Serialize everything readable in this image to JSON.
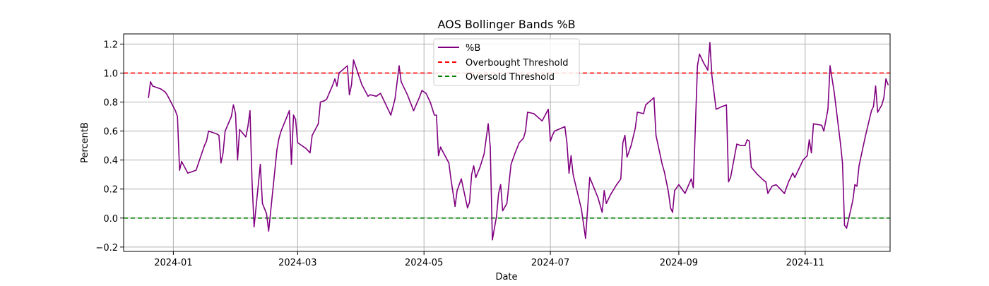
{
  "chart_data": {
    "type": "line",
    "title": "AOS Bollinger Bands %B",
    "xlabel": "Date",
    "ylabel": "PercentB",
    "x_tick_labels": [
      "2024-01",
      "2024-03",
      "2024-05",
      "2024-07",
      "2024-09",
      "2024-11"
    ],
    "x_tick_dates": [
      "2024-01-01",
      "2024-03-01",
      "2024-05-01",
      "2024-07-01",
      "2024-09-01",
      "2024-11-01"
    ],
    "xlim": [
      "2023-12-08",
      "2024-12-12"
    ],
    "y_ticks": [
      -0.2,
      0.0,
      0.2,
      0.4,
      0.6,
      0.8,
      1.0,
      1.2
    ],
    "y_tick_labels": [
      "−0.2",
      "0.0",
      "0.2",
      "0.4",
      "0.6",
      "0.8",
      "1.0",
      "1.2"
    ],
    "ylim": [
      -0.23,
      1.27
    ],
    "grid": true,
    "legend_position": "top-center",
    "colors": {
      "series": "#800080",
      "overbought": "#ff0000",
      "oversold": "#008000",
      "grid": "#b0b0b0"
    },
    "thresholds": [
      {
        "name": "Overbought Threshold",
        "value": 1.0,
        "color": "#ff0000",
        "style": "dashed"
      },
      {
        "name": "Oversold Threshold",
        "value": 0.0,
        "color": "#008000",
        "style": "dashed"
      }
    ],
    "series": [
      {
        "name": "%B",
        "color": "#800080",
        "points": [
          [
            "2023-12-20",
            0.83
          ],
          [
            "2023-12-21",
            0.94
          ],
          [
            "2023-12-22",
            0.91
          ],
          [
            "2023-12-26",
            0.89
          ],
          [
            "2023-12-27",
            0.88
          ],
          [
            "2023-12-28",
            0.87
          ],
          [
            "2023-12-29",
            0.85
          ],
          [
            "2024-01-02",
            0.74
          ],
          [
            "2024-01-03",
            0.7
          ],
          [
            "2024-01-04",
            0.33
          ],
          [
            "2024-01-05",
            0.39
          ],
          [
            "2024-01-08",
            0.31
          ],
          [
            "2024-01-10",
            0.32
          ],
          [
            "2024-01-12",
            0.33
          ],
          [
            "2024-01-16",
            0.5
          ],
          [
            "2024-01-17",
            0.53
          ],
          [
            "2024-01-18",
            0.6
          ],
          [
            "2024-01-22",
            0.58
          ],
          [
            "2024-01-23",
            0.57
          ],
          [
            "2024-01-24",
            0.38
          ],
          [
            "2024-01-25",
            0.45
          ],
          [
            "2024-01-26",
            0.6
          ],
          [
            "2024-01-29",
            0.7
          ],
          [
            "2024-01-30",
            0.78
          ],
          [
            "2024-01-31",
            0.72
          ],
          [
            "2024-02-01",
            0.4
          ],
          [
            "2024-02-02",
            0.61
          ],
          [
            "2024-02-05",
            0.56
          ],
          [
            "2024-02-06",
            0.63
          ],
          [
            "2024-02-07",
            0.74
          ],
          [
            "2024-02-08",
            0.25
          ],
          [
            "2024-02-09",
            -0.06
          ],
          [
            "2024-02-12",
            0.37
          ],
          [
            "2024-02-13",
            0.1
          ],
          [
            "2024-02-15",
            0.03
          ],
          [
            "2024-02-16",
            -0.09
          ],
          [
            "2024-02-20",
            0.47
          ],
          [
            "2024-02-21",
            0.55
          ],
          [
            "2024-02-22",
            0.6
          ],
          [
            "2024-02-26",
            0.74
          ],
          [
            "2024-02-27",
            0.37
          ],
          [
            "2024-02-28",
            0.71
          ],
          [
            "2024-02-29",
            0.68
          ],
          [
            "2024-03-01",
            0.52
          ],
          [
            "2024-03-05",
            0.48
          ],
          [
            "2024-03-07",
            0.45
          ],
          [
            "2024-03-08",
            0.57
          ],
          [
            "2024-03-11",
            0.65
          ],
          [
            "2024-03-12",
            0.8
          ],
          [
            "2024-03-14",
            0.81
          ],
          [
            "2024-03-15",
            0.82
          ],
          [
            "2024-03-18",
            0.92
          ],
          [
            "2024-03-19",
            0.96
          ],
          [
            "2024-03-20",
            0.91
          ],
          [
            "2024-03-21",
            1.0
          ],
          [
            "2024-03-25",
            1.05
          ],
          [
            "2024-03-26",
            0.85
          ],
          [
            "2024-03-27",
            0.92
          ],
          [
            "2024-03-28",
            1.09
          ],
          [
            "2024-04-01",
            0.92
          ],
          [
            "2024-04-04",
            0.84
          ],
          [
            "2024-04-05",
            0.85
          ],
          [
            "2024-04-08",
            0.84
          ],
          [
            "2024-04-09",
            0.85
          ],
          [
            "2024-04-10",
            0.86
          ],
          [
            "2024-04-15",
            0.71
          ],
          [
            "2024-04-17",
            0.82
          ],
          [
            "2024-04-19",
            1.05
          ],
          [
            "2024-04-20",
            0.94
          ],
          [
            "2024-04-23",
            0.85
          ],
          [
            "2024-04-26",
            0.74
          ],
          [
            "2024-04-29",
            0.84
          ],
          [
            "2024-04-30",
            0.88
          ],
          [
            "2024-05-02",
            0.86
          ],
          [
            "2024-05-04",
            0.8
          ],
          [
            "2024-05-06",
            0.71
          ],
          [
            "2024-05-07",
            0.71
          ],
          [
            "2024-05-08",
            0.43
          ],
          [
            "2024-05-09",
            0.49
          ],
          [
            "2024-05-10",
            0.46
          ],
          [
            "2024-05-13",
            0.38
          ],
          [
            "2024-05-14",
            0.27
          ],
          [
            "2024-05-16",
            0.08
          ],
          [
            "2024-05-17",
            0.19
          ],
          [
            "2024-05-19",
            0.27
          ],
          [
            "2024-05-22",
            0.07
          ],
          [
            "2024-05-23",
            0.11
          ],
          [
            "2024-05-24",
            0.3
          ],
          [
            "2024-05-25",
            0.36
          ],
          [
            "2024-05-26",
            0.28
          ],
          [
            "2024-05-28",
            0.35
          ],
          [
            "2024-05-30",
            0.44
          ],
          [
            "2024-06-01",
            0.65
          ],
          [
            "2024-06-02",
            0.49
          ],
          [
            "2024-06-03",
            -0.15
          ],
          [
            "2024-06-05",
            0.01
          ],
          [
            "2024-06-06",
            0.17
          ],
          [
            "2024-06-07",
            0.23
          ],
          [
            "2024-06-08",
            0.05
          ],
          [
            "2024-06-10",
            0.1
          ],
          [
            "2024-06-12",
            0.37
          ],
          [
            "2024-06-14",
            0.45
          ],
          [
            "2024-06-16",
            0.52
          ],
          [
            "2024-06-18",
            0.55
          ],
          [
            "2024-06-19",
            0.6
          ],
          [
            "2024-06-20",
            0.73
          ],
          [
            "2024-06-23",
            0.72
          ],
          [
            "2024-06-27",
            0.67
          ],
          [
            "2024-06-30",
            0.75
          ],
          [
            "2024-07-01",
            0.53
          ],
          [
            "2024-07-02",
            0.57
          ],
          [
            "2024-07-03",
            0.6
          ],
          [
            "2024-07-08",
            0.63
          ],
          [
            "2024-07-09",
            0.52
          ],
          [
            "2024-07-10",
            0.31
          ],
          [
            "2024-07-11",
            0.43
          ],
          [
            "2024-07-12",
            0.3
          ],
          [
            "2024-07-16",
            0.06
          ],
          [
            "2024-07-18",
            -0.14
          ],
          [
            "2024-07-20",
            0.28
          ],
          [
            "2024-07-22",
            0.21
          ],
          [
            "2024-07-24",
            0.14
          ],
          [
            "2024-07-26",
            0.04
          ],
          [
            "2024-07-27",
            0.19
          ],
          [
            "2024-07-28",
            0.1
          ],
          [
            "2024-07-30",
            0.16
          ],
          [
            "2024-08-02",
            0.23
          ],
          [
            "2024-08-04",
            0.27
          ],
          [
            "2024-08-05",
            0.52
          ],
          [
            "2024-08-06",
            0.57
          ],
          [
            "2024-08-07",
            0.42
          ],
          [
            "2024-08-09",
            0.5
          ],
          [
            "2024-08-11",
            0.62
          ],
          [
            "2024-08-12",
            0.73
          ],
          [
            "2024-08-15",
            0.72
          ],
          [
            "2024-08-16",
            0.78
          ],
          [
            "2024-08-20",
            0.83
          ],
          [
            "2024-08-21",
            0.57
          ],
          [
            "2024-08-24",
            0.37
          ],
          [
            "2024-08-25",
            0.32
          ],
          [
            "2024-08-27",
            0.18
          ],
          [
            "2024-08-28",
            0.07
          ],
          [
            "2024-08-29",
            0.04
          ],
          [
            "2024-08-30",
            0.19
          ],
          [
            "2024-09-01",
            0.23
          ],
          [
            "2024-09-04",
            0.17
          ],
          [
            "2024-09-07",
            0.27
          ],
          [
            "2024-09-08",
            0.21
          ],
          [
            "2024-09-10",
            1.05
          ],
          [
            "2024-09-11",
            1.13
          ],
          [
            "2024-09-13",
            1.07
          ],
          [
            "2024-09-15",
            1.02
          ],
          [
            "2024-09-16",
            1.21
          ],
          [
            "2024-09-17",
            0.98
          ],
          [
            "2024-09-19",
            0.75
          ],
          [
            "2024-09-22",
            0.77
          ],
          [
            "2024-09-24",
            0.78
          ],
          [
            "2024-09-25",
            0.25
          ],
          [
            "2024-09-26",
            0.28
          ],
          [
            "2024-09-29",
            0.51
          ],
          [
            "2024-10-01",
            0.5
          ],
          [
            "2024-10-03",
            0.5
          ],
          [
            "2024-10-04",
            0.54
          ],
          [
            "2024-10-05",
            0.53
          ],
          [
            "2024-10-06",
            0.35
          ],
          [
            "2024-10-09",
            0.3
          ],
          [
            "2024-10-12",
            0.26
          ],
          [
            "2024-10-13",
            0.25
          ],
          [
            "2024-10-14",
            0.17
          ],
          [
            "2024-10-16",
            0.22
          ],
          [
            "2024-10-18",
            0.23
          ],
          [
            "2024-10-20",
            0.2
          ],
          [
            "2024-10-22",
            0.17
          ],
          [
            "2024-10-24",
            0.25
          ],
          [
            "2024-10-26",
            0.31
          ],
          [
            "2024-10-27",
            0.28
          ],
          [
            "2024-10-29",
            0.34
          ],
          [
            "2024-10-31",
            0.4
          ],
          [
            "2024-11-02",
            0.43
          ],
          [
            "2024-11-03",
            0.54
          ],
          [
            "2024-11-04",
            0.45
          ],
          [
            "2024-11-05",
            0.65
          ],
          [
            "2024-11-09",
            0.64
          ],
          [
            "2024-11-10",
            0.6
          ],
          [
            "2024-11-12",
            0.75
          ],
          [
            "2024-11-13",
            1.05
          ],
          [
            "2024-11-15",
            0.87
          ],
          [
            "2024-11-18",
            0.52
          ],
          [
            "2024-11-19",
            0.38
          ],
          [
            "2024-11-20",
            -0.05
          ],
          [
            "2024-11-21",
            -0.07
          ],
          [
            "2024-11-24",
            0.12
          ],
          [
            "2024-11-25",
            0.23
          ],
          [
            "2024-11-26",
            0.22
          ],
          [
            "2024-11-27",
            0.36
          ],
          [
            "2024-11-30",
            0.56
          ],
          [
            "2024-12-03",
            0.74
          ],
          [
            "2024-12-04",
            0.77
          ],
          [
            "2024-12-05",
            0.91
          ],
          [
            "2024-12-06",
            0.73
          ],
          [
            "2024-12-08",
            0.78
          ],
          [
            "2024-12-09",
            0.83
          ],
          [
            "2024-12-10",
            0.96
          ],
          [
            "2024-12-11",
            0.92
          ]
        ]
      }
    ]
  }
}
